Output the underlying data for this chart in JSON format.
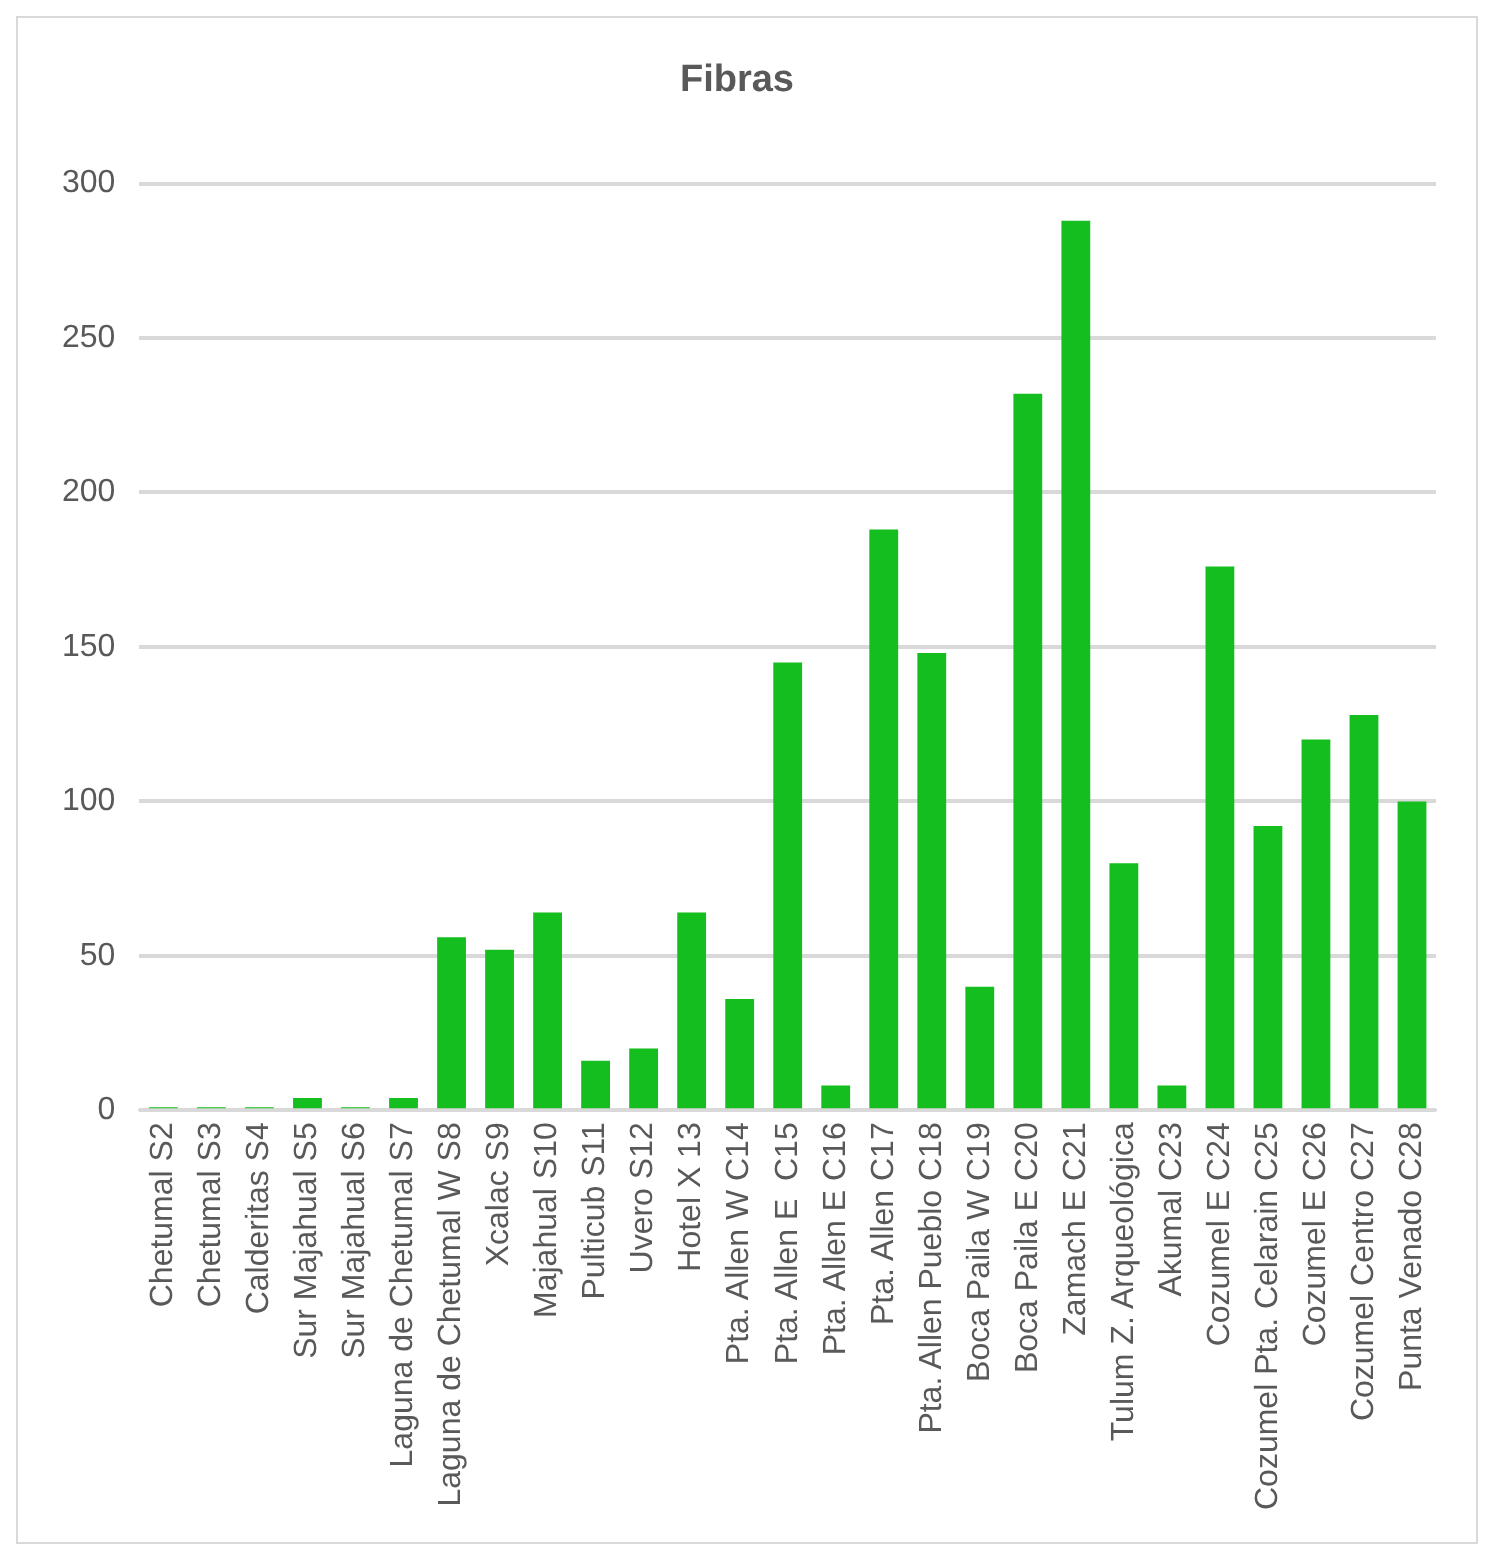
{
  "chart_data": {
    "type": "bar",
    "title": "Fibras",
    "categories": [
      "Chetumal S2",
      "Chetumal S3",
      "Calderitas S4",
      "Sur Majahual S5",
      "Sur Majahual S6",
      "Laguna de Chetumal S7",
      "Laguna de Chetumal W S8",
      "Xcalac S9",
      "Majahual S10",
      "Pulticub S11",
      "Uvero S12",
      "Hotel X 13",
      "Pta. Allen W C14",
      "Pta. Allen E  C15",
      "Pta. Allen E C16",
      "Pta. Allen C17",
      "Pta. Allen Pueblo C18",
      "Boca Paila W C19",
      "Boca Paila E C20",
      "Zamach E C21",
      "Tulum Z. Arqueológica",
      "Akumal C23",
      "Cozumel E C24",
      "Cozumel Pta. Celarain C25",
      "Cozumel E C26",
      "Cozumel Centro C27",
      "Punta Venado C28"
    ],
    "values": [
      1,
      1,
      1,
      4,
      1,
      4,
      56,
      52,
      64,
      16,
      20,
      64,
      36,
      145,
      8,
      188,
      148,
      40,
      232,
      288,
      80,
      8,
      176,
      92,
      120,
      128,
      100
    ],
    "color": "#14be1e",
    "ylim": [
      0,
      300
    ],
    "yticks": [
      0,
      50,
      100,
      150,
      200,
      250,
      300
    ],
    "grid": "y"
  }
}
